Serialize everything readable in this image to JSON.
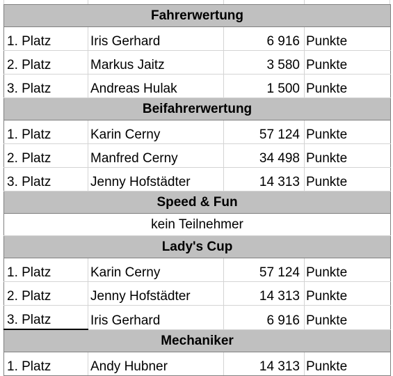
{
  "sections": [
    {
      "title": "Fahrerwertung",
      "rows": [
        {
          "place": "1. Platz",
          "name": "Iris Gerhard",
          "points": "6 916",
          "unit": "Punkte"
        },
        {
          "place": "2. Platz",
          "name": "Markus Jaitz",
          "points": "3 580",
          "unit": "Punkte"
        },
        {
          "place": "3. Platz",
          "name": "Andreas Hulak",
          "points": "1 500",
          "unit": "Punkte"
        }
      ]
    },
    {
      "title": "Beifahrerwertung",
      "rows": [
        {
          "place": "1. Platz",
          "name": "Karin Cerny",
          "points": "57 124",
          "unit": "Punkte"
        },
        {
          "place": "2. Platz",
          "name": "Manfred Cerny",
          "points": "34 498",
          "unit": "Punkte"
        },
        {
          "place": "3. Platz",
          "name": "Jenny Hofstädter",
          "points": "14 313",
          "unit": "Punkte"
        }
      ]
    },
    {
      "title": "Speed & Fun",
      "note": "kein Teilnehmer"
    },
    {
      "title": "Lady's Cup",
      "rows": [
        {
          "place": "1. Platz",
          "name": "Karin Cerny",
          "points": "57 124",
          "unit": "Punkte"
        },
        {
          "place": "2. Platz",
          "name": "Jenny Hofstädter",
          "points": "14 313",
          "unit": "Punkte"
        },
        {
          "place": "3. Platz",
          "name": "Iris Gerhard",
          "points": "6 916",
          "unit": "Punkte"
        }
      ]
    },
    {
      "title": "Mechaniker",
      "rows": [
        {
          "place": "1. Platz",
          "name": "Andy Hubner",
          "points": "14 313",
          "unit": "Punkte"
        }
      ]
    }
  ],
  "colors": {
    "header_bg": "#c0c0c0",
    "grid": "#d4d4d4",
    "border": "#808080"
  }
}
